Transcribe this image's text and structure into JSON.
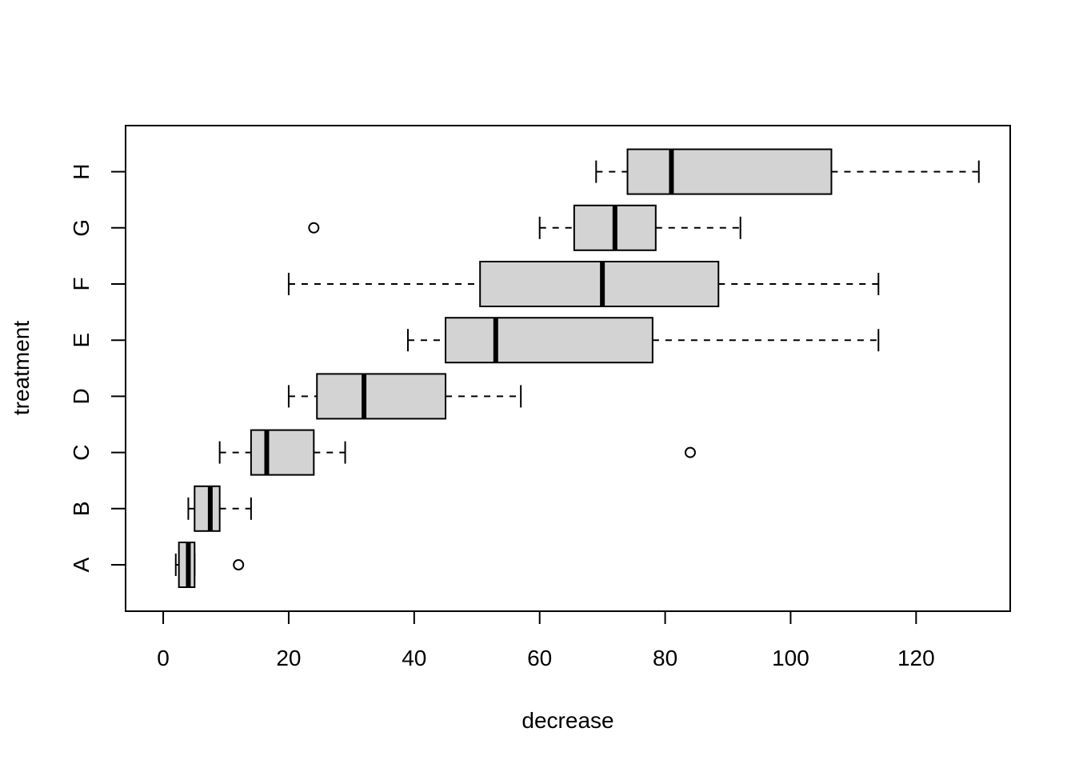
{
  "chart_data": {
    "type": "boxplot",
    "orientation": "horizontal",
    "xlabel": "decrease",
    "ylabel": "treatment",
    "xlim": [
      -6,
      135
    ],
    "x_ticks": [
      0,
      20,
      40,
      60,
      80,
      100,
      120
    ],
    "x_tick_labels": [
      "0",
      "20",
      "40",
      "60",
      "80",
      "100",
      "120"
    ],
    "categories": [
      "A",
      "B",
      "C",
      "D",
      "E",
      "F",
      "G",
      "H"
    ],
    "boxes": [
      {
        "label": "A",
        "whisker_low": 2,
        "q1": 2.5,
        "median": 4,
        "q3": 5,
        "whisker_high": 5,
        "outliers": [
          12
        ]
      },
      {
        "label": "B",
        "whisker_low": 4,
        "q1": 5,
        "median": 7.5,
        "q3": 9,
        "whisker_high": 14,
        "outliers": []
      },
      {
        "label": "C",
        "whisker_low": 9,
        "q1": 14,
        "median": 16.5,
        "q3": 24,
        "whisker_high": 29,
        "outliers": [
          84
        ]
      },
      {
        "label": "D",
        "whisker_low": 20,
        "q1": 24.5,
        "median": 32,
        "q3": 45,
        "whisker_high": 57,
        "outliers": []
      },
      {
        "label": "E",
        "whisker_low": 39,
        "q1": 45,
        "median": 53,
        "q3": 78,
        "whisker_high": 114,
        "outliers": []
      },
      {
        "label": "F",
        "whisker_low": 20,
        "q1": 50.5,
        "median": 70,
        "q3": 88.5,
        "whisker_high": 114,
        "outliers": []
      },
      {
        "label": "G",
        "whisker_low": 60,
        "q1": 65.5,
        "median": 72,
        "q3": 78.5,
        "whisker_high": 92,
        "outliers": [
          24
        ]
      },
      {
        "label": "H",
        "whisker_low": 69,
        "q1": 74,
        "median": 81,
        "q3": 106.5,
        "whisker_high": 130,
        "outliers": []
      }
    ],
    "colors": {
      "box_fill": "#d3d3d3",
      "stroke": "#000000",
      "background": "#ffffff"
    },
    "grid": false,
    "legend": "none"
  }
}
